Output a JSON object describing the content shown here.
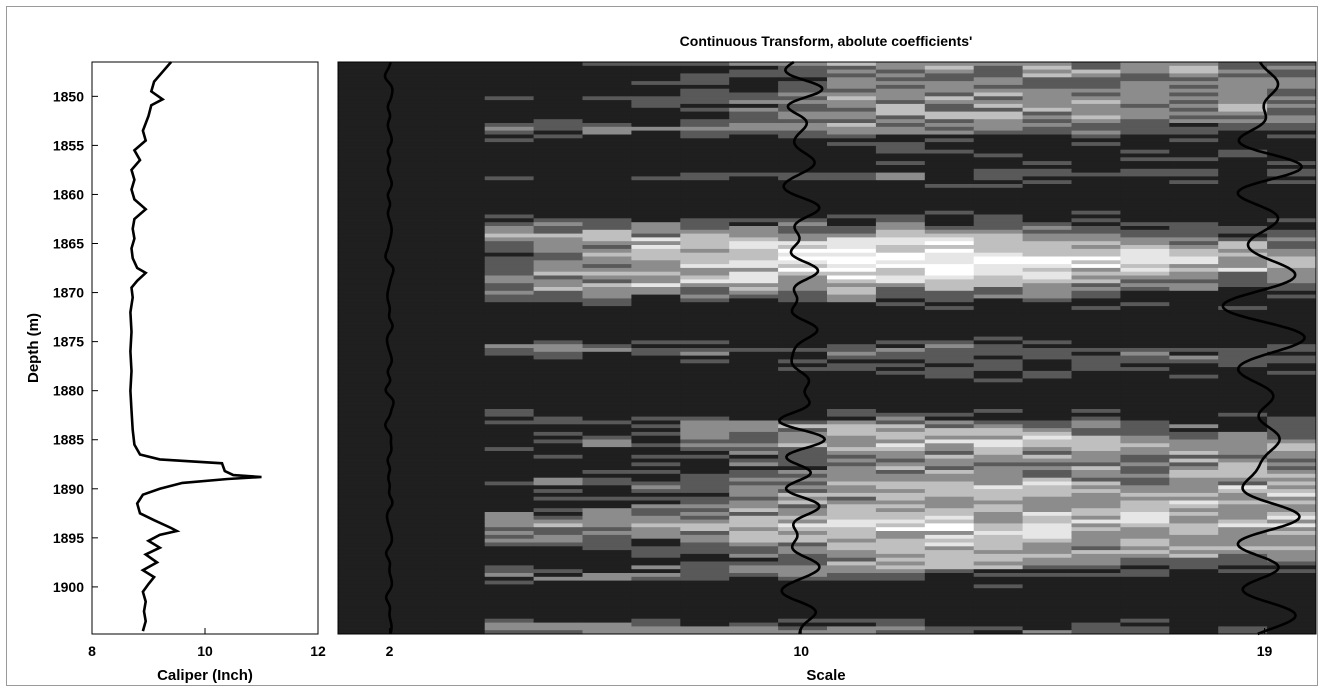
{
  "chart_data": [
    {
      "type": "line",
      "title": "",
      "xlabel": "Caliper (Inch)",
      "ylabel": "Depth (m)",
      "xlim": [
        8,
        12
      ],
      "ylim": [
        1846.5,
        1904.8
      ],
      "y_inverted": true,
      "x_ticks": [
        "8",
        "10",
        "12"
      ],
      "y_ticks": [
        "1850",
        "1855",
        "1860",
        "1865",
        "1870",
        "1875",
        "1880",
        "1885",
        "1890",
        "1895",
        "1900"
      ],
      "grid": false,
      "series": [
        {
          "points": [
            [
              9.4,
              1846.5
            ],
            [
              9.25,
              1847.5
            ],
            [
              9.1,
              1848.5
            ],
            [
              9.05,
              1849.5
            ],
            [
              9.25,
              1850.3
            ],
            [
              9.05,
              1850.9
            ],
            [
              9.0,
              1852.0
            ],
            [
              8.9,
              1853.5
            ],
            [
              8.95,
              1854.5
            ],
            [
              8.75,
              1855.5
            ],
            [
              8.85,
              1856.5
            ],
            [
              8.7,
              1857.5
            ],
            [
              8.75,
              1858.5
            ],
            [
              8.7,
              1859.5
            ],
            [
              8.75,
              1860.5
            ],
            [
              8.95,
              1861.5
            ],
            [
              8.75,
              1862.5
            ],
            [
              8.72,
              1863.5
            ],
            [
              8.75,
              1864.5
            ],
            [
              8.7,
              1865.5
            ],
            [
              8.72,
              1866.5
            ],
            [
              8.8,
              1867.5
            ],
            [
              8.95,
              1868.0
            ],
            [
              8.8,
              1868.8
            ],
            [
              8.7,
              1869.5
            ],
            [
              8.72,
              1870.5
            ],
            [
              8.68,
              1872.0
            ],
            [
              8.7,
              1874.0
            ],
            [
              8.68,
              1876.0
            ],
            [
              8.7,
              1878.0
            ],
            [
              8.68,
              1880.0
            ],
            [
              8.7,
              1882.0
            ],
            [
              8.72,
              1884.0
            ],
            [
              8.75,
              1885.5
            ],
            [
              8.85,
              1886.5
            ],
            [
              9.2,
              1887.0
            ],
            [
              10.3,
              1887.4
            ],
            [
              10.35,
              1888.2
            ],
            [
              10.5,
              1888.6
            ],
            [
              11.0,
              1888.8
            ],
            [
              10.4,
              1889.0
            ],
            [
              9.6,
              1889.4
            ],
            [
              9.2,
              1890.0
            ],
            [
              8.9,
              1890.6
            ],
            [
              8.8,
              1891.5
            ],
            [
              8.85,
              1892.5
            ],
            [
              9.1,
              1893.2
            ],
            [
              9.4,
              1894.0
            ],
            [
              9.5,
              1894.3
            ],
            [
              9.2,
              1894.7
            ],
            [
              9.0,
              1895.3
            ],
            [
              9.2,
              1896.0
            ],
            [
              8.95,
              1896.7
            ],
            [
              9.15,
              1897.5
            ],
            [
              8.9,
              1898.3
            ],
            [
              9.1,
              1899.0
            ],
            [
              9.0,
              1899.7
            ],
            [
              8.9,
              1900.5
            ],
            [
              8.95,
              1901.5
            ],
            [
              8.92,
              1902.5
            ],
            [
              8.95,
              1903.5
            ],
            [
              8.9,
              1904.5
            ]
          ]
        }
      ]
    },
    {
      "type": "heatmap",
      "title": "Continuous Transform, abolute coefficients'",
      "xlabel": "Scale",
      "ylabel": "",
      "x_ticks": [
        "2",
        "10",
        "19"
      ],
      "xlim": [
        1,
        20
      ],
      "ylim": [
        1846.5,
        1904.8
      ],
      "y_inverted": true,
      "colormap": "grayscale, high coefficient = black",
      "grid": false,
      "band_centers_depth": [
        1848.5,
        1851.5,
        1856,
        1860.5,
        1867,
        1873,
        1878.5,
        1880.5,
        1884,
        1887.5,
        1891,
        1897,
        1901.5
      ],
      "band_strength": [
        0.55,
        0.5,
        0.85,
        0.95,
        0.1,
        0.95,
        0.8,
        0.95,
        0.35,
        0.5,
        0.4,
        0.45,
        1.0
      ],
      "series": [
        {
          "name": "2",
          "scale": 2,
          "amplitude": "small"
        },
        {
          "name": "10",
          "scale": 10,
          "amplitude": "medium"
        },
        {
          "name": "19",
          "scale": 19,
          "amplitude": "large"
        }
      ]
    }
  ]
}
